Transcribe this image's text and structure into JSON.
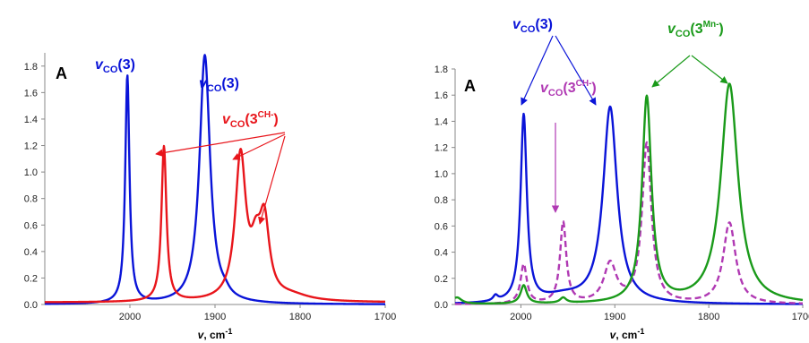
{
  "chart_data": [
    {
      "type": "line",
      "panel_label": "A",
      "xlabel": {
        "symbol": "v",
        "rest": ", cm",
        "sup": "-1"
      },
      "xlim": [
        2100,
        1700
      ],
      "ylim": [
        0,
        1.9
      ],
      "xticks": [
        2000,
        1900,
        1800,
        1700
      ],
      "yticks": [
        0,
        0.2,
        0.4,
        0.6,
        0.8,
        1.0,
        1.2,
        1.4,
        1.6,
        1.8
      ],
      "ytick_labels": [
        "0.0",
        "0.2",
        "0.4",
        "0.6",
        "0.8",
        "1.0",
        "1.2",
        "1.4",
        "1.6",
        "1.8"
      ],
      "series": [
        {
          "color": "#0a14d8",
          "dash": false,
          "baseline": 0.0,
          "peaks": [
            {
              "x": 2003,
              "h": 1.72,
              "w": 3.0
            },
            {
              "x": 1912,
              "h": 1.88,
              "w": 7.5
            },
            {
              "x": 1888,
              "h": 0.03,
              "w": 6
            }
          ]
        },
        {
          "color": "#e8151b",
          "dash": false,
          "baseline": 0.015,
          "peaks": [
            {
              "x": 1960,
              "h": 1.17,
              "w": 3.5
            },
            {
              "x": 1870,
              "h": 1.08,
              "w": 7.5
            },
            {
              "x": 1852,
              "h": 0.3,
              "w": 7
            },
            {
              "x": 1842,
              "h": 0.55,
              "w": 7
            },
            {
              "x": 1810,
              "h": 0.04,
              "w": 25
            }
          ]
        }
      ],
      "annotations": [
        {
          "sym": "v",
          "sub": "CO",
          "base": "(3)",
          "sup": "",
          "color": "#0a14d8"
        },
        {
          "sym": "v",
          "sub": "CO",
          "base": "(3)",
          "sup": "",
          "color": "#0a14d8"
        },
        {
          "sym": "v",
          "sub": "CO",
          "base": "(3",
          "sup": "CH-",
          "close": ")",
          "color": "#e8151b"
        }
      ]
    },
    {
      "type": "line",
      "panel_label": "A",
      "xlabel": {
        "symbol": "v",
        "rest": ", cm",
        "sup": "-1"
      },
      "xlim": [
        2070,
        1700
      ],
      "ylim": [
        0,
        1.8
      ],
      "xticks": [
        2000,
        1900,
        1800,
        1700
      ],
      "yticks": [
        0,
        0.2,
        0.4,
        0.6,
        0.8,
        1.0,
        1.2,
        1.4,
        1.6,
        1.8
      ],
      "ytick_labels": [
        "0.0",
        "0.2",
        "0.4",
        "0.6",
        "0.8",
        "1.0",
        "1.2",
        "1.4",
        "1.6",
        "1.8"
      ],
      "series": [
        {
          "color": "#0a14d8",
          "dash": false,
          "baseline": 0.0,
          "peaks": [
            {
              "x": 1997,
              "h": 1.43,
              "w": 4
            },
            {
              "x": 1905,
              "h": 1.5,
              "w": 9
            },
            {
              "x": 2027,
              "h": 0.04,
              "w": 3
            },
            {
              "x": 1955,
              "h": 0.05,
              "w": 25
            }
          ]
        },
        {
          "color": "#b039b3",
          "dash": true,
          "baseline": 0.0,
          "peaks": [
            {
              "x": 1997,
              "h": 0.3,
              "w": 4
            },
            {
              "x": 1955,
              "h": 0.62,
              "w": 4
            },
            {
              "x": 1905,
              "h": 0.3,
              "w": 8
            },
            {
              "x": 1866,
              "h": 1.22,
              "w": 6
            },
            {
              "x": 1778,
              "h": 0.62,
              "w": 8
            }
          ]
        },
        {
          "color": "#1a9a1a",
          "dash": false,
          "baseline": 0.0,
          "peaks": [
            {
              "x": 1866,
              "h": 1.57,
              "w": 6
            },
            {
              "x": 1778,
              "h": 1.68,
              "w": 11
            },
            {
              "x": 1997,
              "h": 0.14,
              "w": 4
            },
            {
              "x": 1955,
              "h": 0.04,
              "w": 4
            },
            {
              "x": 2068,
              "h": 0.05,
              "w": 6
            }
          ]
        }
      ],
      "annotations": [
        {
          "sym": "v",
          "sub": "CO",
          "base": "(3)",
          "sup": "",
          "color": "#0a14d8"
        },
        {
          "sym": "v",
          "sub": "CO",
          "base": "(3",
          "sup": "CH-",
          "close": ")",
          "color": "#b039b3"
        },
        {
          "sym": "v",
          "sub": "CO",
          "base": "(3",
          "sup": "Mn-",
          "close": ")",
          "color": "#1a9a1a"
        }
      ]
    }
  ]
}
